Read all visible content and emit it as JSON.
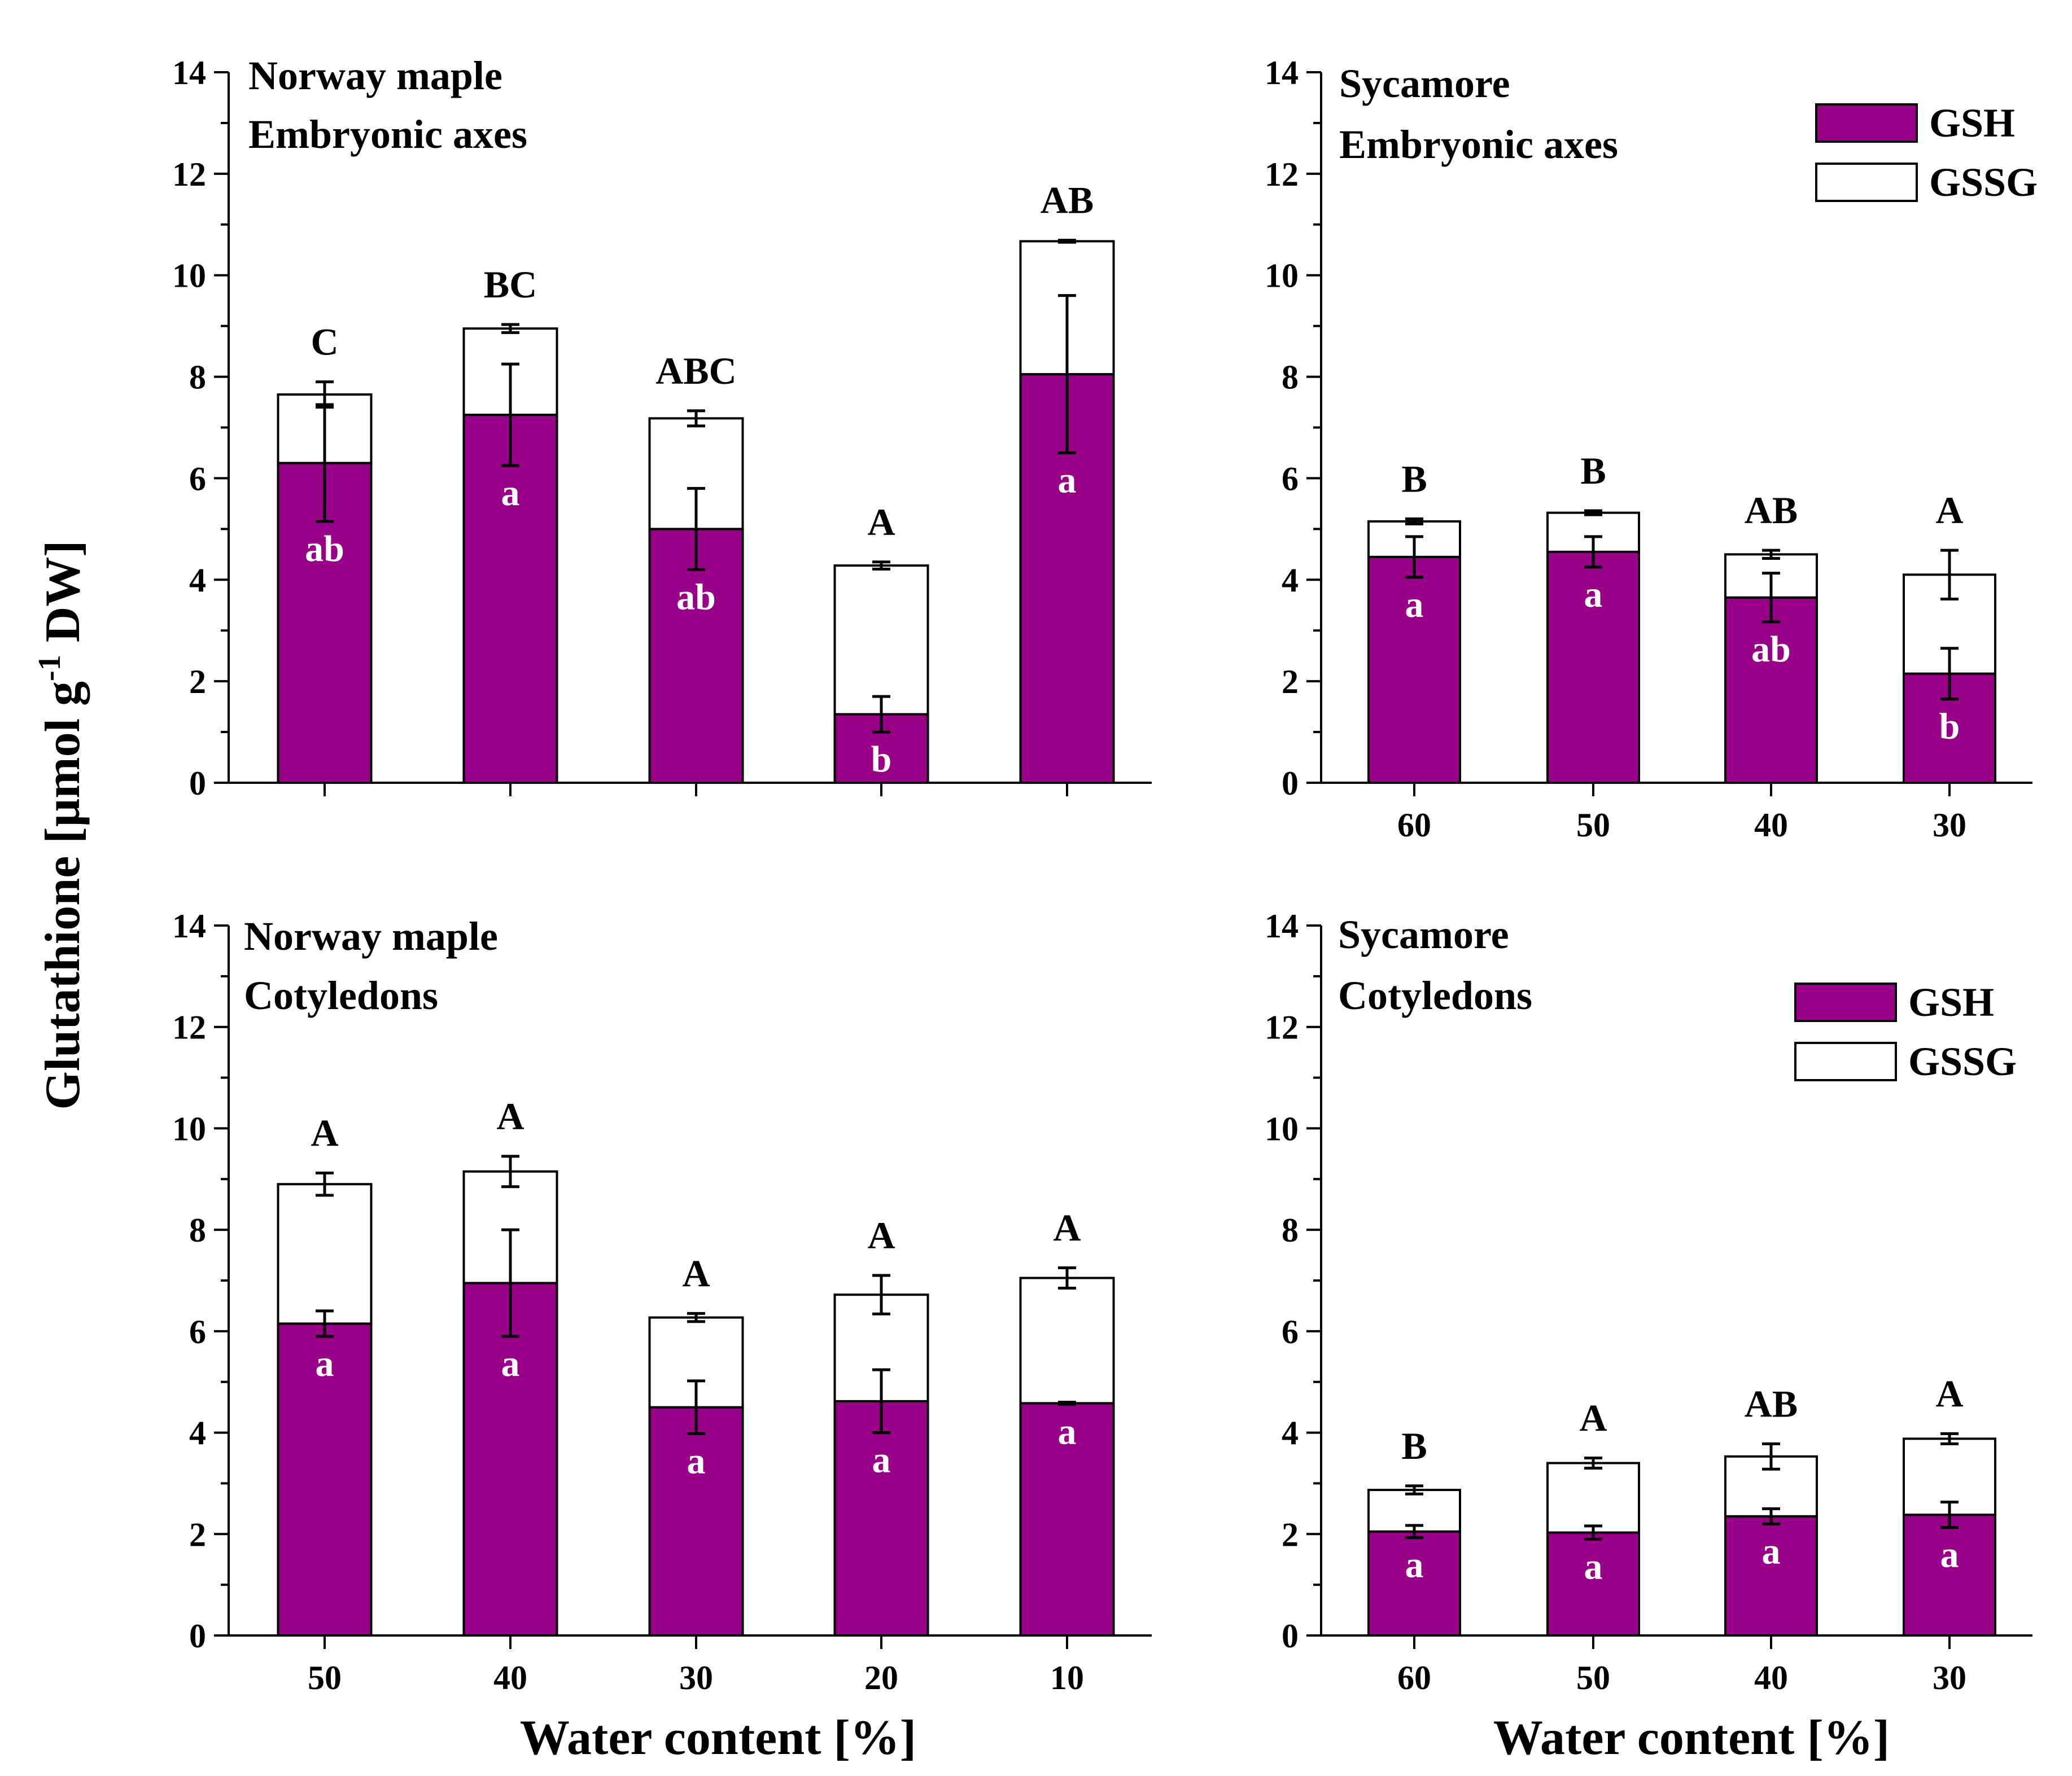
{
  "figure": {
    "y_axis_title": "Glutathione [µmol g",
    "y_axis_title_sup": "-1",
    "y_axis_title_end": " DW]",
    "x_axis_title": "Water content [%]"
  },
  "colors": {
    "gsh": "#990088",
    "gssg": "#ffffff",
    "axis": "#000000"
  },
  "legend": {
    "gsh": "GSH",
    "gssg": "GSSG"
  },
  "chart_data": [
    {
      "type": "bar",
      "stacked": true,
      "title_line1": "Norway maple",
      "title_line2": "Embryonic axes",
      "categories": [
        "50",
        "40",
        "30",
        "20",
        "10"
      ],
      "show_x_tick_labels": false,
      "ylim": [
        0,
        14
      ],
      "yticks": [
        "0",
        "2",
        "4",
        "6",
        "8",
        "10",
        "12",
        "14"
      ],
      "series": [
        {
          "name": "GSH",
          "values": [
            6.3,
            7.25,
            5.0,
            1.35,
            8.05
          ],
          "errors": [
            1.15,
            1.0,
            0.8,
            0.35,
            1.55
          ],
          "labels": [
            "ab",
            "a",
            "ab",
            "b",
            "a"
          ]
        },
        {
          "name": "GSSG",
          "values": [
            1.35,
            1.7,
            2.18,
            2.93,
            2.62
          ],
          "errors": [
            0.25,
            0.08,
            0.15,
            0.07,
            0.02
          ]
        }
      ],
      "total_labels": [
        "C",
        "BC",
        "ABC",
        "A",
        "AB"
      ],
      "legend": false
    },
    {
      "type": "bar",
      "stacked": true,
      "title_line1": "Sycamore",
      "title_line2": "Embryonic axes",
      "categories": [
        "60",
        "50",
        "40",
        "30"
      ],
      "show_x_tick_labels": true,
      "ylim": [
        0,
        14
      ],
      "yticks": [
        "0",
        "2",
        "4",
        "6",
        "8",
        "10",
        "12",
        "14"
      ],
      "series": [
        {
          "name": "GSH",
          "values": [
            4.45,
            4.55,
            3.65,
            2.15
          ],
          "errors": [
            0.4,
            0.3,
            0.48,
            0.5
          ],
          "labels": [
            "a",
            "a",
            "ab",
            "b"
          ]
        },
        {
          "name": "GSSG",
          "values": [
            0.7,
            0.77,
            0.85,
            1.95
          ],
          "errors": [
            0.05,
            0.04,
            0.08,
            0.48
          ]
        }
      ],
      "total_labels": [
        "B",
        "B",
        "AB",
        "A"
      ],
      "legend": true
    },
    {
      "type": "bar",
      "stacked": true,
      "title_line1": "Norway maple",
      "title_line2": "Cotyledons",
      "categories": [
        "50",
        "40",
        "30",
        "20",
        "10"
      ],
      "show_x_tick_labels": true,
      "ylim": [
        0,
        14
      ],
      "yticks": [
        "0",
        "2",
        "4",
        "6",
        "8",
        "10",
        "12",
        "14"
      ],
      "series": [
        {
          "name": "GSH",
          "values": [
            6.15,
            6.95,
            4.5,
            4.62,
            4.58
          ],
          "errors": [
            0.25,
            1.05,
            0.52,
            0.62,
            0.02
          ],
          "labels": [
            "a",
            "a",
            "a",
            "a",
            "a"
          ]
        },
        {
          "name": "GSSG",
          "values": [
            2.75,
            2.2,
            1.77,
            2.1,
            2.47
          ],
          "errors": [
            0.22,
            0.3,
            0.08,
            0.38,
            0.2
          ]
        }
      ],
      "total_labels": [
        "A",
        "A",
        "A",
        "A",
        "A"
      ],
      "legend": false
    },
    {
      "type": "bar",
      "stacked": true,
      "title_line1": "Sycamore",
      "title_line2": "Cotyledons",
      "categories": [
        "60",
        "50",
        "40",
        "30"
      ],
      "show_x_tick_labels": true,
      "ylim": [
        0,
        14
      ],
      "yticks": [
        "0",
        "2",
        "4",
        "6",
        "8",
        "10",
        "12",
        "14"
      ],
      "series": [
        {
          "name": "GSH",
          "values": [
            2.05,
            2.03,
            2.35,
            2.38
          ],
          "errors": [
            0.12,
            0.13,
            0.15,
            0.25
          ],
          "labels": [
            "a",
            "a",
            "a",
            "a"
          ]
        },
        {
          "name": "GSSG",
          "values": [
            0.82,
            1.37,
            1.18,
            1.5
          ],
          "errors": [
            0.08,
            0.1,
            0.25,
            0.1
          ]
        }
      ],
      "total_labels": [
        "B",
        "A",
        "AB",
        "A"
      ],
      "legend": true
    }
  ]
}
